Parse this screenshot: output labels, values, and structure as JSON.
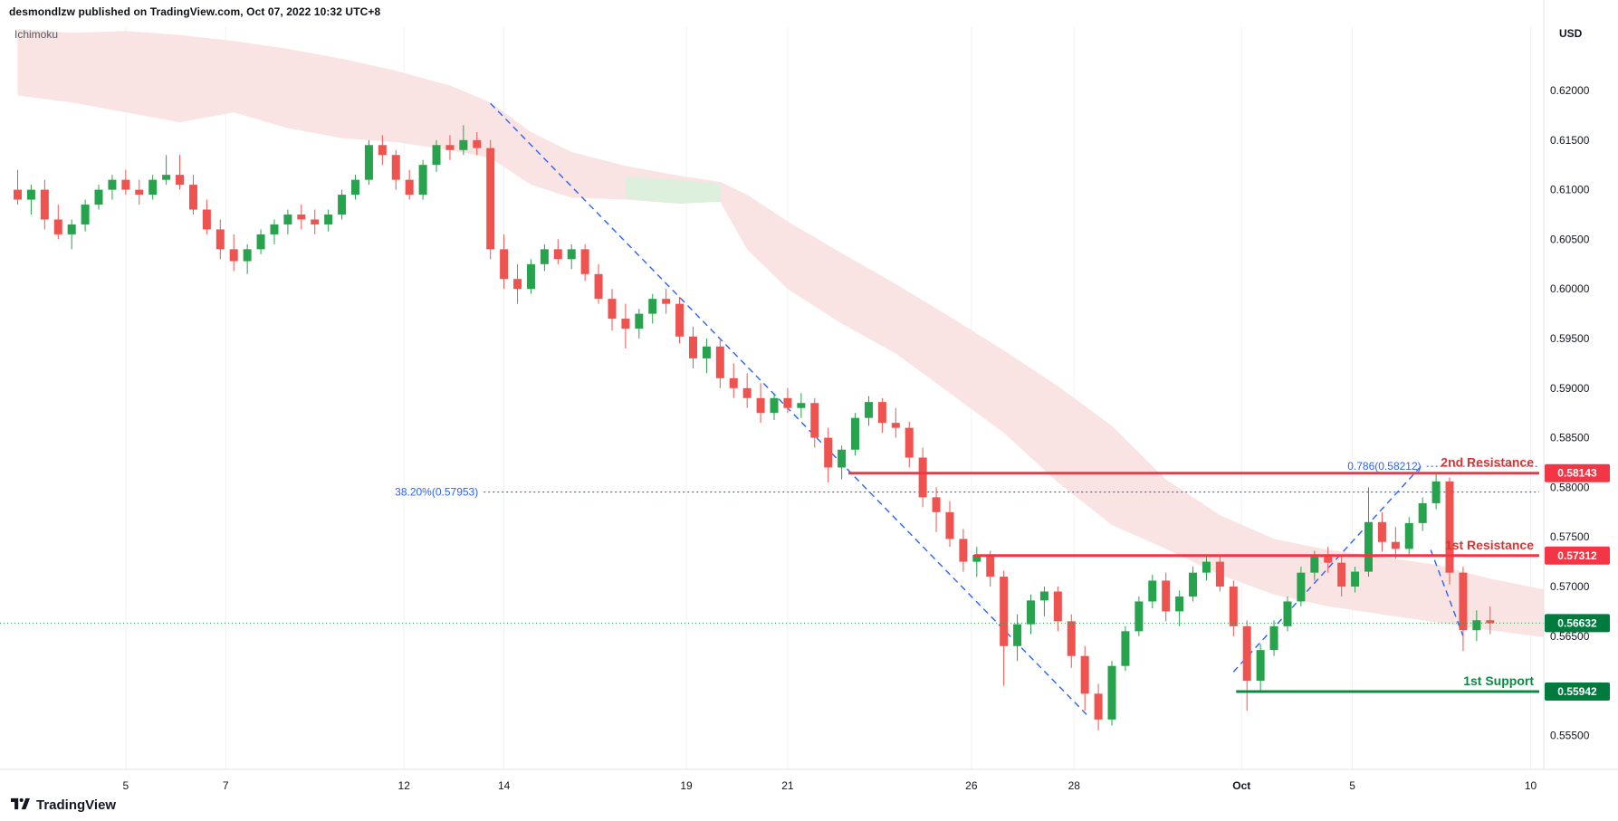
{
  "header": {
    "publish_line": "desmondlzw published on TradingView.com, Oct 07, 2022 10:32 UTC+8"
  },
  "footer": {
    "logo_text": "TradingView"
  },
  "colors": {
    "background": "#ffffff",
    "candle_up": "#26a34c",
    "candle_down": "#ef5350",
    "cloud_pink": "#fae3e3",
    "cloud_green": "#ddefdd",
    "resistance_red": "#f23645",
    "resistance_text": "#d93434",
    "support_green": "#0c8a44",
    "support_text": "#0c8a44",
    "box_red": "#f23645",
    "box_green": "#007a3d",
    "current_green": "#2b9e53",
    "line_blue": "#2962ff",
    "axis_text": "#131722",
    "grid": "#f0f2f5",
    "separator": "#e0e3eb"
  },
  "chart_data": {
    "type": "candlestick",
    "legend": "Ichimoku",
    "price_axis_currency": "USD",
    "y_axis": {
      "min": 0.555,
      "max": 0.62,
      "ticks": [
        {
          "price": 0.62,
          "label": "0.62000"
        },
        {
          "price": 0.615,
          "label": "0.61500"
        },
        {
          "price": 0.61,
          "label": "0.61000"
        },
        {
          "price": 0.605,
          "label": "0.60500"
        },
        {
          "price": 0.6,
          "label": "0.60000"
        },
        {
          "price": 0.595,
          "label": "0.59500"
        },
        {
          "price": 0.59,
          "label": "0.59000"
        },
        {
          "price": 0.585,
          "label": "0.58500"
        },
        {
          "price": 0.58,
          "label": "0.58000"
        },
        {
          "price": 0.575,
          "label": "0.57500"
        },
        {
          "price": 0.57,
          "label": "0.57000"
        },
        {
          "price": 0.565,
          "label": "0.56500"
        },
        {
          "price": 0.555,
          "label": "0.55500"
        }
      ]
    },
    "x_axis": {
      "ticks": [
        {
          "idx": 8,
          "label": "5"
        },
        {
          "idx": 15.4,
          "label": "7"
        },
        {
          "idx": 28.6,
          "label": "12"
        },
        {
          "idx": 36,
          "label": "14"
        },
        {
          "idx": 49.5,
          "label": "19"
        },
        {
          "idx": 57,
          "label": "21"
        },
        {
          "idx": 70.6,
          "label": "26"
        },
        {
          "idx": 78.2,
          "label": "28"
        },
        {
          "idx": 90.6,
          "label": "Oct",
          "bold": true
        },
        {
          "idx": 98.8,
          "label": "5"
        },
        {
          "idx": 112,
          "label": "10"
        }
      ]
    },
    "candles": [
      [
        0.61,
        0.612,
        0.6085,
        0.609
      ],
      [
        0.609,
        0.6105,
        0.6075,
        0.61
      ],
      [
        0.61,
        0.611,
        0.606,
        0.607
      ],
      [
        0.607,
        0.6085,
        0.605,
        0.6055
      ],
      [
        0.6055,
        0.607,
        0.604,
        0.6065
      ],
      [
        0.6065,
        0.609,
        0.6058,
        0.6085
      ],
      [
        0.6085,
        0.6105,
        0.608,
        0.61
      ],
      [
        0.61,
        0.6115,
        0.609,
        0.611
      ],
      [
        0.611,
        0.612,
        0.6095,
        0.61
      ],
      [
        0.61,
        0.611,
        0.6085,
        0.6095
      ],
      [
        0.6095,
        0.6115,
        0.609,
        0.611
      ],
      [
        0.611,
        0.6135,
        0.6105,
        0.6115
      ],
      [
        0.6115,
        0.6135,
        0.61,
        0.6105
      ],
      [
        0.6105,
        0.6115,
        0.6075,
        0.608
      ],
      [
        0.608,
        0.609,
        0.6055,
        0.606
      ],
      [
        0.606,
        0.607,
        0.603,
        0.604
      ],
      [
        0.604,
        0.6055,
        0.6018,
        0.6028
      ],
      [
        0.6028,
        0.6045,
        0.6015,
        0.604
      ],
      [
        0.604,
        0.606,
        0.6035,
        0.6055
      ],
      [
        0.6055,
        0.607,
        0.6045,
        0.6065
      ],
      [
        0.6065,
        0.608,
        0.6055,
        0.6075
      ],
      [
        0.6075,
        0.6085,
        0.606,
        0.607
      ],
      [
        0.607,
        0.608,
        0.6055,
        0.6065
      ],
      [
        0.6065,
        0.608,
        0.6058,
        0.6075
      ],
      [
        0.6075,
        0.61,
        0.607,
        0.6095
      ],
      [
        0.6095,
        0.6115,
        0.609,
        0.611
      ],
      [
        0.611,
        0.615,
        0.6105,
        0.6145
      ],
      [
        0.6145,
        0.6155,
        0.6125,
        0.6135
      ],
      [
        0.6135,
        0.614,
        0.61,
        0.611
      ],
      [
        0.611,
        0.612,
        0.609,
        0.6095
      ],
      [
        0.6095,
        0.613,
        0.609,
        0.6125
      ],
      [
        0.6125,
        0.615,
        0.6118,
        0.6145
      ],
      [
        0.6145,
        0.6155,
        0.613,
        0.614
      ],
      [
        0.614,
        0.6165,
        0.6135,
        0.615
      ],
      [
        0.615,
        0.6158,
        0.6135,
        0.6142
      ],
      [
        0.6142,
        0.615,
        0.603,
        0.604
      ],
      [
        0.604,
        0.6055,
        0.6,
        0.601
      ],
      [
        0.601,
        0.6025,
        0.5985,
        0.6
      ],
      [
        0.6,
        0.603,
        0.5995,
        0.6025
      ],
      [
        0.6025,
        0.6045,
        0.6018,
        0.604
      ],
      [
        0.604,
        0.605,
        0.6025,
        0.603
      ],
      [
        0.603,
        0.6045,
        0.602,
        0.604
      ],
      [
        0.604,
        0.6045,
        0.6008,
        0.6015
      ],
      [
        0.6015,
        0.6025,
        0.5985,
        0.599
      ],
      [
        0.599,
        0.6,
        0.5958,
        0.597
      ],
      [
        0.597,
        0.5985,
        0.594,
        0.596
      ],
      [
        0.596,
        0.598,
        0.595,
        0.5975
      ],
      [
        0.5975,
        0.5995,
        0.5965,
        0.599
      ],
      [
        0.599,
        0.6,
        0.5975,
        0.5985
      ],
      [
        0.5985,
        0.5992,
        0.5945,
        0.5952
      ],
      [
        0.5952,
        0.5962,
        0.592,
        0.593
      ],
      [
        0.593,
        0.595,
        0.5915,
        0.5942
      ],
      [
        0.5942,
        0.5948,
        0.59,
        0.591
      ],
      [
        0.591,
        0.5925,
        0.589,
        0.59
      ],
      [
        0.59,
        0.5915,
        0.588,
        0.589
      ],
      [
        0.589,
        0.5905,
        0.5865,
        0.5875
      ],
      [
        0.5875,
        0.5895,
        0.5868,
        0.589
      ],
      [
        0.589,
        0.59,
        0.5875,
        0.588
      ],
      [
        0.588,
        0.5895,
        0.587,
        0.5885
      ],
      [
        0.5885,
        0.589,
        0.584,
        0.585
      ],
      [
        0.585,
        0.586,
        0.5805,
        0.582
      ],
      [
        0.582,
        0.5842,
        0.5808,
        0.5838
      ],
      [
        0.5838,
        0.5875,
        0.5832,
        0.587
      ],
      [
        0.587,
        0.5892,
        0.5862,
        0.5886
      ],
      [
        0.5886,
        0.589,
        0.5855,
        0.5865
      ],
      [
        0.5865,
        0.588,
        0.585,
        0.586
      ],
      [
        0.586,
        0.5866,
        0.582,
        0.583
      ],
      [
        0.583,
        0.584,
        0.578,
        0.579
      ],
      [
        0.579,
        0.58,
        0.5755,
        0.5775
      ],
      [
        0.5775,
        0.5786,
        0.574,
        0.5748
      ],
      [
        0.5748,
        0.5758,
        0.5715,
        0.5725
      ],
      [
        0.5725,
        0.574,
        0.571,
        0.5732
      ],
      [
        0.5732,
        0.5736,
        0.57,
        0.571
      ],
      [
        0.571,
        0.5716,
        0.56,
        0.564
      ],
      [
        0.564,
        0.5672,
        0.5625,
        0.5662
      ],
      [
        0.5662,
        0.5692,
        0.5652,
        0.5686
      ],
      [
        0.5686,
        0.57,
        0.567,
        0.5695
      ],
      [
        0.5695,
        0.57,
        0.5655,
        0.5665
      ],
      [
        0.5665,
        0.5672,
        0.5618,
        0.563
      ],
      [
        0.563,
        0.564,
        0.5575,
        0.5592
      ],
      [
        0.5592,
        0.5602,
        0.5555,
        0.5566
      ],
      [
        0.5566,
        0.5625,
        0.556,
        0.562
      ],
      [
        0.562,
        0.566,
        0.5615,
        0.5655
      ],
      [
        0.5655,
        0.569,
        0.565,
        0.5685
      ],
      [
        0.5685,
        0.5712,
        0.5678,
        0.5706
      ],
      [
        0.5706,
        0.5714,
        0.5665,
        0.5675
      ],
      [
        0.5675,
        0.5696,
        0.566,
        0.569
      ],
      [
        0.569,
        0.572,
        0.5685,
        0.5714
      ],
      [
        0.5714,
        0.573,
        0.5706,
        0.5725
      ],
      [
        0.5725,
        0.5731,
        0.5695,
        0.57
      ],
      [
        0.57,
        0.5706,
        0.565,
        0.566
      ],
      [
        0.566,
        0.5666,
        0.5575,
        0.5605
      ],
      [
        0.5605,
        0.5642,
        0.5595,
        0.5636
      ],
      [
        0.5636,
        0.5666,
        0.563,
        0.566
      ],
      [
        0.566,
        0.569,
        0.5655,
        0.5685
      ],
      [
        0.5685,
        0.572,
        0.568,
        0.5714
      ],
      [
        0.5714,
        0.5736,
        0.5706,
        0.573
      ],
      [
        0.573,
        0.574,
        0.5714,
        0.5724
      ],
      [
        0.5724,
        0.573,
        0.569,
        0.57
      ],
      [
        0.57,
        0.572,
        0.5694,
        0.5715
      ],
      [
        0.5715,
        0.58,
        0.571,
        0.5765
      ],
      [
        0.5765,
        0.5775,
        0.5735,
        0.5745
      ],
      [
        0.5745,
        0.576,
        0.5728,
        0.5738
      ],
      [
        0.5738,
        0.577,
        0.5732,
        0.5764
      ],
      [
        0.5764,
        0.579,
        0.5756,
        0.5784
      ],
      [
        0.5784,
        0.5815,
        0.5778,
        0.5806
      ],
      [
        0.5806,
        0.581,
        0.5702,
        0.5714
      ],
      [
        0.5714,
        0.572,
        0.5635,
        0.5656
      ],
      [
        0.5656,
        0.5676,
        0.5645,
        0.5666
      ],
      [
        0.5666,
        0.568,
        0.5652,
        0.5663
      ]
    ],
    "cloud": {
      "anchors": [
        [
          0,
          0.6262,
          0.6195
        ],
        [
          4,
          0.6258,
          0.6188
        ],
        [
          8,
          0.626,
          0.6178
        ],
        [
          12,
          0.6256,
          0.6168
        ],
        [
          16,
          0.625,
          0.6178
        ],
        [
          20,
          0.6242,
          0.6162
        ],
        [
          24,
          0.6232,
          0.6152
        ],
        [
          28,
          0.622,
          0.6148
        ],
        [
          32,
          0.6205,
          0.614
        ],
        [
          35,
          0.6188,
          0.6132
        ],
        [
          38,
          0.6158,
          0.6105
        ],
        [
          41,
          0.6138,
          0.6092
        ],
        [
          45,
          0.6124,
          0.609
        ],
        [
          49,
          0.6114,
          0.6086
        ],
        [
          52,
          0.6108,
          0.6088
        ],
        [
          54,
          0.6095,
          0.604
        ],
        [
          57,
          0.6068,
          0.6
        ],
        [
          61,
          0.6036,
          0.5965
        ],
        [
          65,
          0.6005,
          0.5935
        ],
        [
          69,
          0.5972,
          0.5895
        ],
        [
          73,
          0.5938,
          0.5855
        ],
        [
          77,
          0.5902,
          0.5805
        ],
        [
          81,
          0.5862,
          0.5762
        ],
        [
          85,
          0.5808,
          0.5738
        ],
        [
          89,
          0.5772,
          0.5712
        ],
        [
          93,
          0.5748,
          0.5692
        ],
        [
          97,
          0.5737,
          0.568
        ],
        [
          101,
          0.573,
          0.5672
        ],
        [
          105,
          0.5722,
          0.5664
        ],
        [
          109,
          0.5708,
          0.5656
        ],
        [
          113,
          0.5697,
          0.5649
        ]
      ],
      "green_patch": [
        [
          45,
          0.6113
        ],
        [
          49,
          0.611
        ],
        [
          52,
          0.6106
        ],
        [
          52,
          0.6088
        ],
        [
          49,
          0.6086
        ],
        [
          45,
          0.6091
        ]
      ]
    },
    "levels": {
      "resistance2": {
        "name": "2nd Resistance",
        "price": 0.58143,
        "box": "0.58143",
        "start_idx": 61.5
      },
      "resistance1": {
        "name": "1st Resistance",
        "price": 0.57312,
        "box": "0.57312",
        "start_idx": 70.8
      },
      "support1": {
        "name": "1st Support",
        "price": 0.55942,
        "box": "0.55942",
        "start_idx": 90.2
      },
      "current": {
        "price": 0.56632,
        "box": "0.56632"
      }
    },
    "fib_levels": [
      {
        "label": "38.20%(0.57953)",
        "price": 0.57953,
        "start_idx": 34.5
      },
      {
        "label": "0.786(0.58212)",
        "price": 0.58212,
        "start_idx": 104.3
      }
    ],
    "trend_lines": [
      {
        "from": [
          35,
          0.6187
        ],
        "to": [
          79.2,
          0.557
        ]
      },
      {
        "from": [
          90,
          0.5614
        ],
        "to": [
          104,
          0.5823
        ]
      },
      {
        "from": [
          104.6,
          0.5737
        ],
        "to": [
          107,
          0.565
        ]
      }
    ]
  }
}
